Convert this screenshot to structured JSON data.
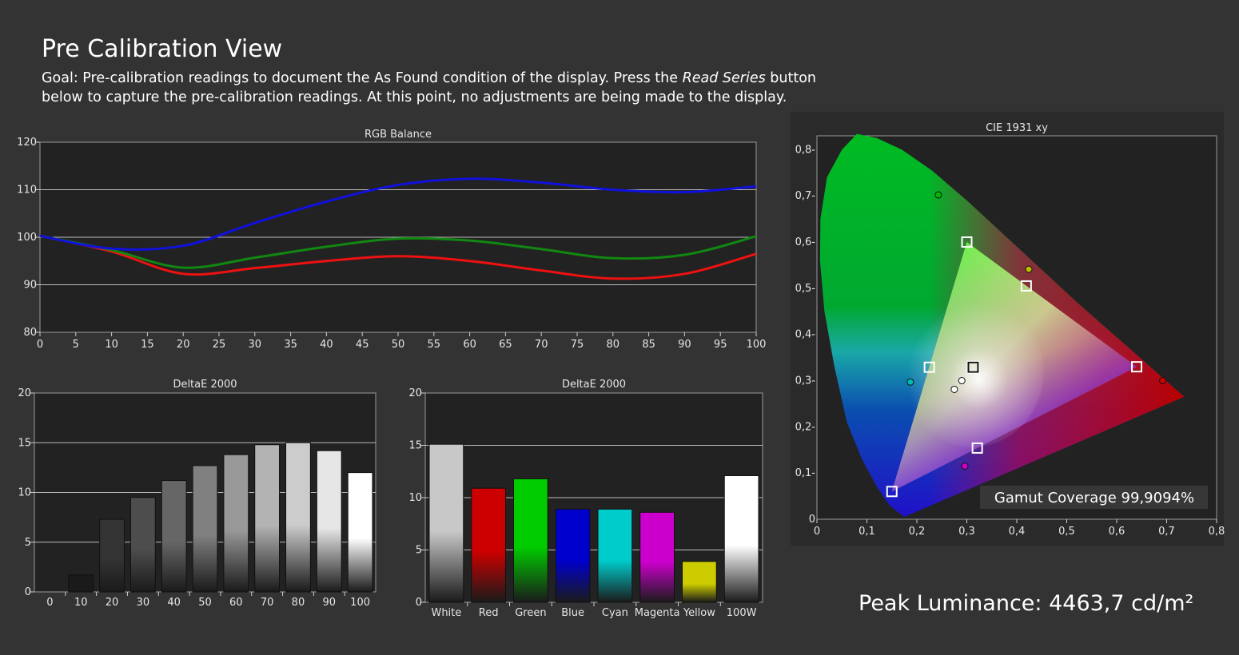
{
  "page": {
    "title": "Pre Calibration View",
    "goal_prefix": "Goal: Pre-calibration readings to document the As Found condition of the display. Press the ",
    "goal_emphasis": "Read Series",
    "goal_suffix": " button below to capture the pre-calibration readings. At this point, no adjustments are being made to the display.",
    "peak_label": "Peak Luminance: 4463,7 cd/m²"
  },
  "colors": {
    "background": "#333333",
    "plot_bg": "#222222",
    "red": "#ee1111",
    "green": "#118811",
    "blue": "#1111dd"
  },
  "chart_data": [
    {
      "id": "rgb_balance",
      "type": "line",
      "title": "RGB Balance",
      "x": [
        0,
        10,
        20,
        30,
        40,
        50,
        60,
        70,
        80,
        90,
        100
      ],
      "x_ticks": [
        0,
        5,
        10,
        15,
        20,
        25,
        30,
        35,
        40,
        45,
        50,
        55,
        60,
        65,
        70,
        75,
        80,
        85,
        90,
        95,
        100
      ],
      "y_ticks": [
        80,
        90,
        100,
        110,
        120
      ],
      "xlim": [
        0,
        100
      ],
      "ylim": [
        80,
        120
      ],
      "grid": true,
      "series": [
        {
          "color": "#ee1111",
          "values": [
            100.3,
            97.0,
            92.3,
            93.5,
            95.0,
            96.0,
            95.0,
            93.0,
            91.3,
            92.3,
            96.5
          ]
        },
        {
          "color": "#118811",
          "values": [
            100.3,
            97.3,
            93.6,
            95.7,
            98.0,
            99.7,
            99.3,
            97.5,
            95.6,
            96.3,
            100.2
          ]
        },
        {
          "color": "#1111dd",
          "values": [
            100.3,
            97.6,
            98.2,
            103.0,
            107.5,
            111.0,
            112.3,
            111.5,
            110.0,
            109.5,
            110.7
          ]
        }
      ]
    },
    {
      "id": "deltae_grayscale",
      "type": "bar",
      "title": "DeltaE 2000",
      "categories": [
        "0",
        "10",
        "20",
        "30",
        "40",
        "50",
        "60",
        "70",
        "80",
        "90",
        "100"
      ],
      "values": [
        0,
        1.7,
        7.3,
        9.5,
        11.2,
        12.7,
        13.8,
        14.8,
        15.0,
        14.2,
        12.0
      ],
      "colors": [
        "#000000",
        "#1a1a1a",
        "#333333",
        "#4d4d4d",
        "#666666",
        "#808080",
        "#999999",
        "#b3b3b3",
        "#cccccc",
        "#e6e6e6",
        "#ffffff"
      ],
      "y_ticks": [
        0,
        5,
        10,
        15,
        20
      ],
      "ylim": [
        0,
        20
      ],
      "grid": true
    },
    {
      "id": "deltae_colors",
      "type": "bar",
      "title": "DeltaE 2000",
      "categories": [
        "White",
        "Red",
        "Green",
        "Blue",
        "Cyan",
        "Magenta",
        "Yellow",
        "100W"
      ],
      "values": [
        15.1,
        10.9,
        11.8,
        8.9,
        8.9,
        8.6,
        3.9,
        12.1
      ],
      "colors": [
        "#c8c8c8",
        "#cc0000",
        "#00cc00",
        "#0000cc",
        "#00cccc",
        "#cc00cc",
        "#cccc00",
        "#ffffff"
      ],
      "y_ticks": [
        0,
        5,
        10,
        15,
        20
      ],
      "ylim": [
        0,
        20
      ],
      "grid": true
    },
    {
      "id": "cie_1931",
      "type": "scatter",
      "title": "CIE 1931 xy",
      "x_ticks": [
        "0",
        "0,1",
        "0,2",
        "0,3",
        "0,4",
        "0,5",
        "0,6",
        "0,7",
        "0,8"
      ],
      "y_ticks": [
        "0",
        "0,1-",
        "0,2-",
        "0,3-",
        "0,4-",
        "0,5-",
        "0,6-",
        "0,7-",
        "0,8-"
      ],
      "xlim": [
        0,
        0.8
      ],
      "ylim": [
        0,
        0.83
      ],
      "gamut_label": "Gamut Coverage 99,9094%",
      "targets": [
        {
          "x": 0.64,
          "y": 0.33
        },
        {
          "x": 0.3,
          "y": 0.6
        },
        {
          "x": 0.15,
          "y": 0.06
        },
        {
          "x": 0.225,
          "y": 0.329
        },
        {
          "x": 0.321,
          "y": 0.154
        },
        {
          "x": 0.419,
          "y": 0.505
        },
        {
          "x": 0.3127,
          "y": 0.329
        }
      ],
      "measured": [
        {
          "x": 0.692,
          "y": 0.3,
          "color": "#cc0000"
        },
        {
          "x": 0.243,
          "y": 0.702,
          "color": "#00bb00"
        },
        {
          "x": 0.187,
          "y": 0.297,
          "color": "#00bbbb"
        },
        {
          "x": 0.296,
          "y": 0.115,
          "color": "#cc00cc"
        },
        {
          "x": 0.424,
          "y": 0.541,
          "color": "#bbbb00"
        },
        {
          "x": 0.29,
          "y": 0.3,
          "color": "#ffffff"
        },
        {
          "x": 0.275,
          "y": 0.281,
          "color": "#ffffff"
        }
      ]
    }
  ]
}
